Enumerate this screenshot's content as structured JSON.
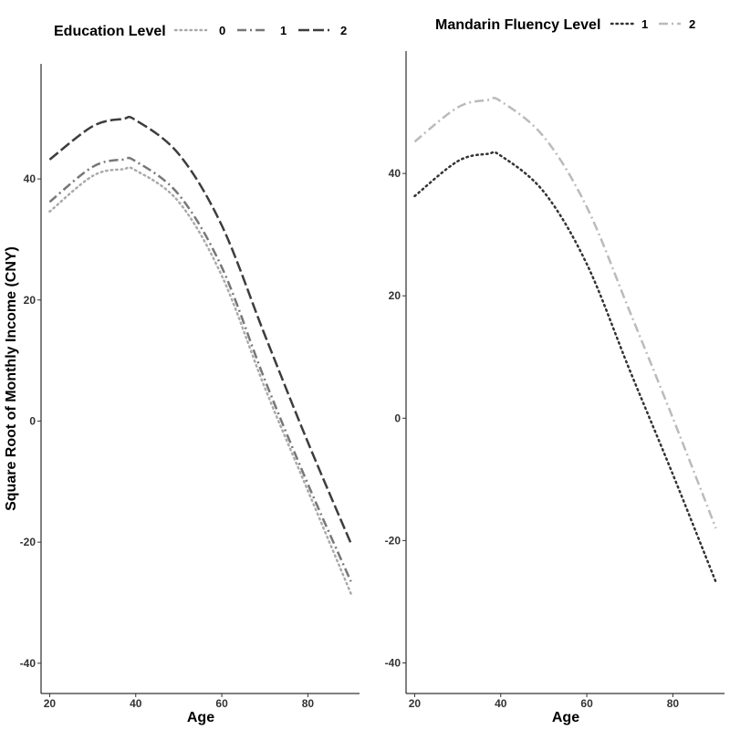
{
  "chart_data": [
    {
      "type": "line",
      "title": "",
      "xlabel": "Age",
      "ylabel": "Square Root of Monthly Income (CNY)",
      "xlim": [
        18,
        92
      ],
      "ylim": [
        -45,
        59
      ],
      "x_ticks": [
        20,
        40,
        60,
        80
      ],
      "y_ticks": [
        -40,
        -20,
        0,
        20,
        40
      ],
      "grid": false,
      "legend": {
        "title": "Education Level",
        "position": "top"
      },
      "x": [
        20,
        30,
        37,
        40,
        50,
        60,
        70,
        80,
        90
      ],
      "series": [
        {
          "name": "0",
          "style": "dotted",
          "color": "#aaaaaa",
          "values": [
            34.6,
            40.5,
            41.6,
            41.4,
            36.2,
            24.0,
            5.5,
            -11.5,
            -28.5
          ]
        },
        {
          "name": "1",
          "style": "dashdot",
          "color": "#777777",
          "values": [
            36.2,
            42.0,
            43.2,
            42.9,
            37.4,
            25.4,
            6.8,
            -10.4,
            -26.5
          ]
        },
        {
          "name": "2",
          "style": "longdash",
          "color": "#3d3d3d",
          "values": [
            43.2,
            48.7,
            49.9,
            49.7,
            44.1,
            32.3,
            14.2,
            -3.5,
            -20.2
          ]
        }
      ]
    },
    {
      "type": "line",
      "title": "",
      "xlabel": "Age",
      "ylabel": "",
      "xlim": [
        18,
        92
      ],
      "ylim": [
        -45,
        60
      ],
      "x_ticks": [
        20,
        40,
        60,
        80
      ],
      "y_ticks": [
        -40,
        -20,
        0,
        20,
        40
      ],
      "grid": false,
      "legend": {
        "title": "Mandarin Fluency Level",
        "position": "top"
      },
      "x": [
        20,
        30,
        37,
        40,
        50,
        60,
        70,
        80,
        90
      ],
      "series": [
        {
          "name": "1",
          "style": "dotted",
          "color": "#333333",
          "values": [
            36.3,
            42.0,
            43.2,
            42.9,
            37.0,
            25.2,
            7.8,
            -9.2,
            -26.8
          ]
        },
        {
          "name": "2",
          "style": "dashdot",
          "color": "#bbbbbb",
          "values": [
            45.2,
            50.8,
            52.0,
            51.8,
            46.0,
            34.5,
            17.4,
            0.0,
            -18.0
          ]
        }
      ]
    }
  ]
}
